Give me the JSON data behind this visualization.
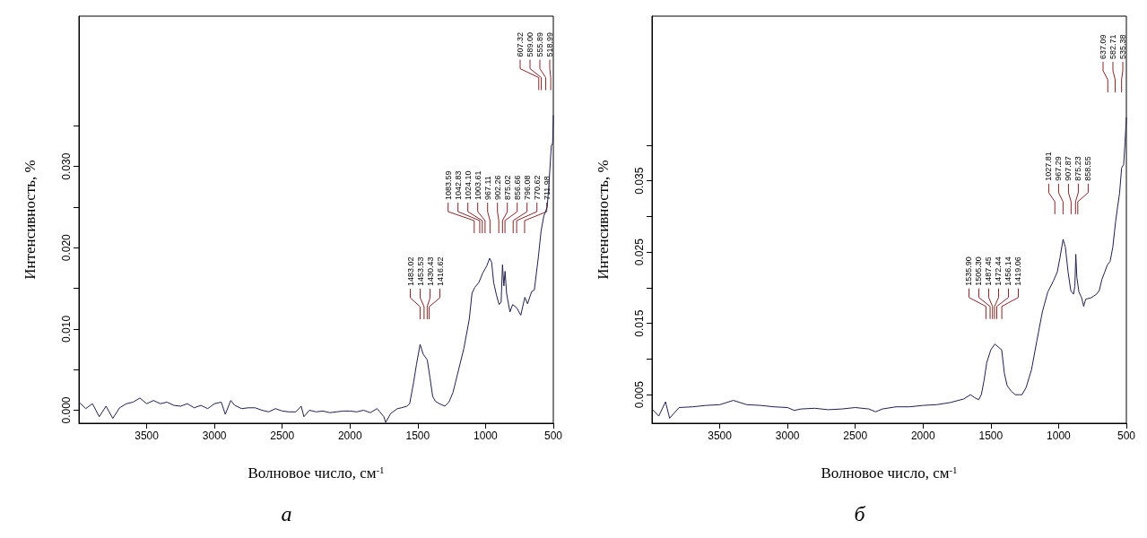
{
  "chart_data": [
    {
      "type": "line",
      "title": "а",
      "xlabel": "Волновое число, см$^{-1}$",
      "ylabel": "Интенсивность, %",
      "color": "#202048",
      "grid": false,
      "marker": "none",
      "line_style": "solid",
      "xlim": [
        4000,
        500
      ],
      "xticks": [
        3500,
        3000,
        2500,
        2000,
        1500,
        1000,
        500
      ],
      "ylim": [
        -0.0016,
        0.0485
      ],
      "yticks": [
        {
          "value": 0,
          "label": "0.000"
        },
        {
          "value": 0.005,
          "label": null
        },
        {
          "value": 0.01,
          "label": "0.010"
        },
        {
          "value": 0.015,
          "label": null
        },
        {
          "value": 0.02,
          "label": "0.020"
        },
        {
          "value": 0.025,
          "label": null
        },
        {
          "value": 0.03,
          "label": "0.030"
        },
        {
          "value": 0.035,
          "label": null
        }
      ],
      "x": [
        4000,
        3950,
        3900,
        3850,
        3800,
        3750,
        3700,
        3650,
        3600,
        3550,
        3500,
        3450,
        3400,
        3350,
        3300,
        3250,
        3200,
        3150,
        3100,
        3050,
        3000,
        2950,
        2920,
        2880,
        2850,
        2800,
        2750,
        2700,
        2650,
        2600,
        2550,
        2500,
        2450,
        2400,
        2360,
        2340,
        2300,
        2250,
        2200,
        2150,
        2100,
        2050,
        2000,
        1950,
        1900,
        1850,
        1800,
        1780,
        1750,
        1737,
        1700,
        1650,
        1620,
        1580,
        1560,
        1530,
        1510,
        1483,
        1460,
        1430,
        1410,
        1390,
        1370,
        1340,
        1300,
        1270,
        1240,
        1200,
        1160,
        1120,
        1100,
        1080,
        1050,
        1020,
        990,
        970,
        955,
        940,
        920,
        900,
        885,
        875,
        865,
        856,
        845,
        820,
        800,
        770,
        740,
        710,
        690,
        660,
        640,
        610,
        590,
        570,
        545,
        530,
        515,
        505,
        500
      ],
      "values": [
        0.001,
        0.0002,
        0.0008,
        -0.0008,
        0.0005,
        -0.001,
        0.0003,
        0.0008,
        0.001,
        0.0015,
        0.0008,
        0.0012,
        0.0008,
        0.001,
        0.0006,
        0.0005,
        0.0008,
        0.0003,
        0.0006,
        0.0002,
        0.0008,
        0.001,
        -0.0005,
        0.0012,
        0.0006,
        0.0002,
        0.0003,
        0.0003,
        0,
        -0.0002,
        0.0002,
        -0.0001,
        -0.0002,
        -0.0002,
        0.0005,
        -0.0008,
        0,
        -0.0002,
        -0.0001,
        -0.0003,
        -0.0002,
        -0.0001,
        -0.0001,
        -0.0002,
        0,
        -0.0003,
        0.0002,
        -0.0002,
        -0.0008,
        -0.0015,
        -0.0004,
        0.0002,
        0.0003,
        0.0005,
        0.0008,
        0.0035,
        0.0056,
        0.0081,
        0.0069,
        0.0062,
        0.004,
        0.0017,
        0.0011,
        0.0008,
        0.0005,
        0.001,
        0.0022,
        0.0049,
        0.0076,
        0.0112,
        0.0144,
        0.0151,
        0.0157,
        0.0169,
        0.0178,
        0.0187,
        0.0182,
        0.0157,
        0.0142,
        0.013,
        0.0133,
        0.0179,
        0.0153,
        0.0171,
        0.0144,
        0.0121,
        0.013,
        0.0126,
        0.0117,
        0.0139,
        0.0131,
        0.0146,
        0.0148,
        0.0189,
        0.0221,
        0.0239,
        0.025,
        0.0284,
        0.0325,
        0.0329,
        0.0363
      ],
      "annotations": [
        {
          "text": "1483.02",
          "x": 1483.02
        },
        {
          "text": "1453.53",
          "x": 1453.53
        },
        {
          "text": "1430.43",
          "x": 1430.43
        },
        {
          "text": "1416.62",
          "x": 1416.62
        },
        {
          "text": "1083.59",
          "x": 1083.59
        },
        {
          "text": "1042.83",
          "x": 1042.83
        },
        {
          "text": "1024.10",
          "x": 1024.1
        },
        {
          "text": "1003.61",
          "x": 1003.61
        },
        {
          "text": "967.11",
          "x": 967.11
        },
        {
          "text": "902.26",
          "x": 902.26
        },
        {
          "text": "875.02",
          "x": 875.02
        },
        {
          "text": "856.66",
          "x": 856.66
        },
        {
          "text": "796.08",
          "x": 796.08
        },
        {
          "text": "770.62",
          "x": 770.62
        },
        {
          "text": "711.98",
          "x": 711.98
        },
        {
          "text": "607.32",
          "x": 607.32
        },
        {
          "text": "589.00",
          "x": 589.0
        },
        {
          "text": "555.89",
          "x": 555.89
        },
        {
          "text": "518.99",
          "x": 518.99
        }
      ]
    },
    {
      "type": "line",
      "title": "б",
      "xlabel": "Волновое число, см$^{-1}$",
      "ylabel": "Интенсивность, %",
      "color": "#202048",
      "grid": false,
      "marker": "none",
      "line_style": "solid",
      "xlim": [
        4000,
        500
      ],
      "xticks": [
        3500,
        3000,
        2500,
        2000,
        1500,
        1000,
        500
      ],
      "ylim": [
        0.001,
        0.0581
      ],
      "yticks": [
        {
          "value": 0.005,
          "label": "0.005"
        },
        {
          "value": 0.01,
          "label": null
        },
        {
          "value": 0.015,
          "label": "0.015"
        },
        {
          "value": 0.02,
          "label": null
        },
        {
          "value": 0.025,
          "label": "0.025"
        },
        {
          "value": 0.03,
          "label": null
        },
        {
          "value": 0.035,
          "label": "0.035"
        },
        {
          "value": 0.04,
          "label": null
        }
      ],
      "x": [
        4000,
        3950,
        3900,
        3870,
        3800,
        3700,
        3600,
        3500,
        3400,
        3300,
        3200,
        3100,
        3000,
        2950,
        2900,
        2800,
        2700,
        2600,
        2500,
        2400,
        2350,
        2300,
        2200,
        2100,
        2000,
        1900,
        1800,
        1700,
        1650,
        1620,
        1590,
        1570,
        1550,
        1530,
        1500,
        1470,
        1440,
        1420,
        1400,
        1380,
        1350,
        1320,
        1290,
        1270,
        1240,
        1200,
        1160,
        1120,
        1080,
        1040,
        1010,
        990,
        967,
        950,
        930,
        910,
        890,
        880,
        873,
        865,
        850,
        830,
        815,
        800,
        760,
        720,
        700,
        680,
        660,
        640,
        620,
        600,
        580,
        565,
        550,
        535,
        520,
        510,
        500
      ],
      "values": [
        0.003,
        0.002,
        0.004,
        0.0017,
        0.0032,
        0.0033,
        0.0035,
        0.0036,
        0.0042,
        0.0036,
        0.0035,
        0.0033,
        0.0032,
        0.0028,
        0.003,
        0.0031,
        0.0029,
        0.003,
        0.0032,
        0.003,
        0.0026,
        0.003,
        0.0033,
        0.0033,
        0.0035,
        0.0036,
        0.0039,
        0.0044,
        0.005,
        0.0046,
        0.0043,
        0.005,
        0.007,
        0.0095,
        0.0113,
        0.0121,
        0.0116,
        0.0113,
        0.008,
        0.0063,
        0.0055,
        0.005,
        0.005,
        0.005,
        0.006,
        0.0085,
        0.0126,
        0.0166,
        0.0194,
        0.0209,
        0.0222,
        0.0242,
        0.0268,
        0.0257,
        0.0222,
        0.0196,
        0.0191,
        0.0202,
        0.0247,
        0.0214,
        0.0194,
        0.0186,
        0.0174,
        0.0184,
        0.0186,
        0.0191,
        0.0196,
        0.0212,
        0.0222,
        0.0232,
        0.0237,
        0.0257,
        0.0292,
        0.0313,
        0.0333,
        0.0368,
        0.0373,
        0.0404,
        0.0439
      ],
      "annotations": [
        {
          "text": "1535.90",
          "x": 1535.9
        },
        {
          "text": "1505.30",
          "x": 1505.3
        },
        {
          "text": "1487.45",
          "x": 1487.45
        },
        {
          "text": "1472.44",
          "x": 1472.44
        },
        {
          "text": "1456.14",
          "x": 1456.14
        },
        {
          "text": "1419.06",
          "x": 1419.06
        },
        {
          "text": "1027.81",
          "x": 1027.81
        },
        {
          "text": "967.29",
          "x": 967.29
        },
        {
          "text": "907.87",
          "x": 907.87
        },
        {
          "text": "875.23",
          "x": 875.23
        },
        {
          "text": "858.55",
          "x": 858.55
        },
        {
          "text": "637.09",
          "x": 637.09
        },
        {
          "text": "582.71",
          "x": 582.71
        },
        {
          "text": "535.38",
          "x": 535.38
        }
      ]
    }
  ]
}
